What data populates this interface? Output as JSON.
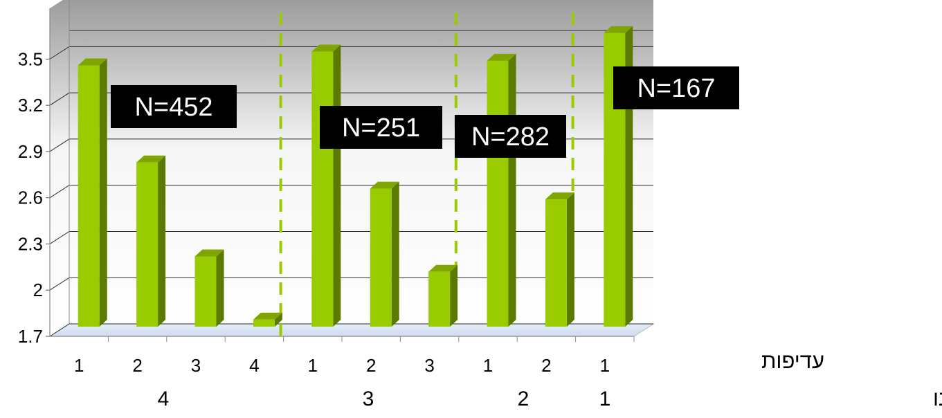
{
  "chart_data": {
    "type": "bar",
    "title": "",
    "xlabel": "",
    "ylabel": "",
    "ylim": [
      1.7,
      3.65
    ],
    "yticks": [
      "1.7",
      "2",
      "2.3",
      "2.6",
      "2.9",
      "3.2",
      "3.5"
    ],
    "grid": true,
    "row_label_inner": "עדיפות",
    "row_label_outer": "מספר עדיפויות שציינו",
    "categories": [
      "1",
      "2",
      "3",
      "4",
      "1",
      "2",
      "3",
      "1",
      "2",
      "1"
    ],
    "values": [
      3.45,
      2.82,
      2.21,
      1.8,
      3.54,
      2.65,
      2.11,
      3.48,
      2.58,
      3.66
    ],
    "groups": [
      {
        "label": "4",
        "n_label": "N=452",
        "count": 4
      },
      {
        "label": "3",
        "n_label": "N=251",
        "count": 3
      },
      {
        "label": "2",
        "n_label": "N=282",
        "count": 2
      },
      {
        "label": "1",
        "n_label": "N=167",
        "count": 1
      }
    ],
    "colors": {
      "bar_front": "#99cc00",
      "bar_side": "#5a7a00",
      "bar_top": "#7fa600",
      "divider": "#99cc00",
      "label_box": "#000000",
      "label_text": "#ffffff"
    }
  }
}
